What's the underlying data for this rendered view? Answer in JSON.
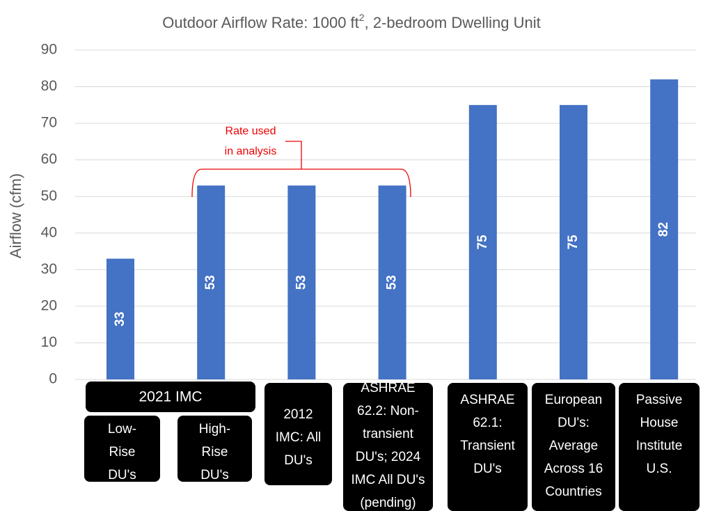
{
  "chart_data": {
    "type": "bar",
    "title": [
      "Outdoor Airflow Rate: 1000 ft",
      "2",
      ", 2-bedroom Dwelling Unit"
    ],
    "y_label": "Airflow (cfm)",
    "categories": [
      [
        "Low-",
        "Rise",
        "DU's"
      ],
      [
        "High-",
        "Rise",
        "DU's"
      ],
      [
        "2012",
        "IMC: All",
        "DU's"
      ],
      [
        "ASHRAE",
        "62.2: Non-",
        "transient",
        "DU's; 2024",
        "IMC All DU's",
        "(pending)"
      ],
      [
        "ASHRAE",
        "62.1:",
        "Transient",
        "DU's"
      ],
      [
        "European",
        "DU's:",
        "Average",
        "Across 16",
        "Countries"
      ],
      [
        "Passive",
        "House",
        "Institute",
        "U.S."
      ]
    ],
    "category_group": "2021 IMC",
    "values": [
      33,
      53,
      53,
      53,
      75,
      75,
      82
    ],
    "color": "#4472c4",
    "annotation": [
      "Rate used",
      "in analysis"
    ],
    "ylim": [
      0,
      90
    ],
    "yticks": [
      0,
      10,
      20,
      30,
      40,
      50,
      60,
      70,
      80,
      90
    ],
    "grid": true
  }
}
